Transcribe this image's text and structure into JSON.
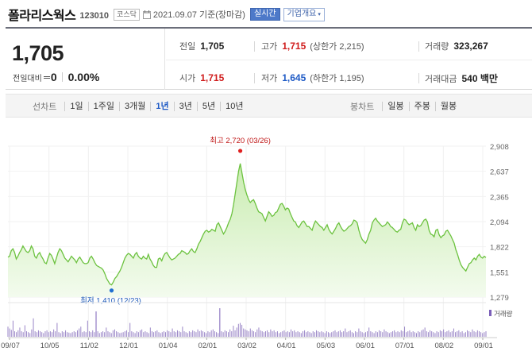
{
  "header": {
    "stock_name": "폴라리스웍스",
    "stock_code": "123010",
    "market": "코스닥",
    "date_text": "2021.09.07 기준(장마감)",
    "realtime_label": "실시간",
    "company_label": "기업개요",
    "company_caret": "▾"
  },
  "summary": {
    "price": "1,705",
    "change_label": "전일대비",
    "change_value": "0",
    "change_pct": "0.00%",
    "prev_close_label": "전일",
    "prev_close": "1,705",
    "high_label": "고가",
    "high": "1,715",
    "upper_limit": "(상한가 2,215)",
    "volume_label": "거래량",
    "volume": "323,267",
    "open_label": "시가",
    "open": "1,715",
    "low_label": "저가",
    "low": "1,645",
    "lower_limit": "(하한가 1,195)",
    "amount_label": "거래대금",
    "amount": "540 백만"
  },
  "line_tabs": {
    "label": "선차트",
    "items": [
      "1일",
      "1주일",
      "3개월",
      "1년",
      "3년",
      "5년",
      "10년"
    ],
    "active": "1년"
  },
  "candle_tabs": {
    "label": "봉차트",
    "items": [
      "일봉",
      "주봉",
      "월봉"
    ]
  },
  "colors": {
    "line": "#6cc23f",
    "area_top": "#c9ecb0",
    "area_bottom": "#f3fbee",
    "max_marker": "#e02020",
    "min_marker": "#1f6fd1",
    "volume_bar": "#9a86c7",
    "volume_peak": "#7b5fb8"
  },
  "chart_data": {
    "type": "area",
    "y_ticks": [
      "2,908",
      "2,637",
      "2,365",
      "2,094",
      "1,822",
      "1,551",
      "1,279"
    ],
    "ylim": [
      1279,
      2908
    ],
    "x_ticks": [
      "09/07",
      "10/05",
      "11/02",
      "12/01",
      "01/04",
      "02/01",
      "03/02",
      "04/01",
      "05/03",
      "06/01",
      "07/01",
      "08/02",
      "09/01"
    ],
    "max_label": "최고 2,720 (03/26)",
    "min_label": "최저 1,410 (12/23)",
    "volume_legend": "거래량",
    "series": [
      {
        "values": [
          1710,
          1720,
          1780,
          1800,
          1760,
          1690,
          1720,
          1760,
          1790,
          1830,
          1800,
          1770,
          1760,
          1780,
          1830,
          1800,
          1720,
          1700,
          1740,
          1760,
          1720,
          1690,
          1650,
          1640,
          1700,
          1750,
          1730,
          1690,
          1640,
          1700,
          1760,
          1800,
          1780,
          1740,
          1700,
          1680,
          1660,
          1690,
          1720,
          1700,
          1680,
          1650,
          1690,
          1710,
          1680,
          1650,
          1640,
          1640,
          1650,
          1700,
          1720,
          1690,
          1650,
          1620,
          1610,
          1600,
          1590,
          1570,
          1530,
          1480,
          1450,
          1420,
          1410,
          1440,
          1480,
          1500,
          1530,
          1560,
          1600,
          1650,
          1700,
          1730,
          1750,
          1740,
          1720,
          1700,
          1740,
          1760,
          1720,
          1700,
          1690,
          1720,
          1700,
          1690,
          1740,
          1690,
          1660,
          1620,
          1600,
          1600,
          1690,
          1700,
          1670,
          1720,
          1750,
          1760,
          1730,
          1700,
          1680,
          1690,
          1700,
          1720,
          1740,
          1750,
          1780,
          1770,
          1760,
          1740,
          1750,
          1780,
          1800,
          1770,
          1760,
          1800,
          1850,
          1880,
          1920,
          1960,
          1990,
          2000,
          1980,
          1990,
          2010,
          2000,
          1990,
          2060,
          2080,
          2040,
          2000,
          1960,
          1990,
          2030,
          2080,
          2120,
          2180,
          2280,
          2400,
          2520,
          2640,
          2720,
          2620,
          2520,
          2440,
          2380,
          2330,
          2300,
          2320,
          2330,
          2290,
          2240,
          2200,
          2190,
          2180,
          2140,
          2100,
          2150,
          2200,
          2180,
          2150,
          2160,
          2190,
          2200,
          2240,
          2280,
          2290,
          2260,
          2220,
          2240,
          2230,
          2180,
          2140,
          2100,
          2090,
          2050,
          2030,
          2060,
          2090,
          2100,
          2070,
          2040,
          2040,
          2020,
          2000,
          2060,
          2100,
          2080,
          2060,
          2040,
          2030,
          2000,
          2030,
          2060,
          2010,
          1980,
          1960,
          1990,
          2020,
          2060,
          2080,
          2040,
          2010,
          1990,
          2000,
          2020,
          2040,
          2050,
          2070,
          2110,
          2100,
          2080,
          2000,
          1940,
          1900,
          1880,
          1860,
          1900,
          1960,
          2000,
          2080,
          2110,
          2130,
          2100,
          2080,
          2060,
          2040,
          2050,
          2060,
          2090,
          2070,
          2040,
          2030,
          2010,
          1990,
          1980,
          2000,
          2010,
          2080,
          2120,
          2110,
          2080,
          2060,
          2070,
          2080,
          2030,
          2000,
          2060,
          2040,
          2050,
          2080,
          2110,
          2120,
          2090,
          2000,
          1960,
          1950,
          1930,
          2000,
          2010,
          1950,
          1920,
          1940,
          1950,
          1990,
          2000,
          1970,
          1940,
          1900,
          1860,
          1790,
          1740,
          1680,
          1630,
          1600,
          1580,
          1560,
          1600,
          1640,
          1650,
          1680,
          1700,
          1680,
          1720,
          1740,
          1710,
          1700,
          1720,
          1705
        ]
      }
    ],
    "volume": [
      22,
      18,
      15,
      35,
      12,
      10,
      14,
      20,
      12,
      10,
      25,
      12,
      10,
      8,
      16,
      40,
      12,
      10,
      14,
      12,
      10,
      8,
      12,
      14,
      10,
      12,
      10,
      16,
      12,
      30,
      10,
      8,
      12,
      10,
      14,
      10,
      9,
      8,
      10,
      12,
      10,
      14,
      18,
      22,
      10,
      12,
      10,
      35,
      12,
      10,
      14,
      10,
      55,
      12,
      8,
      10,
      12,
      10,
      20,
      12,
      10,
      8,
      14,
      16,
      12,
      10,
      8,
      9,
      10,
      12,
      14,
      10,
      30,
      12,
      10,
      8,
      12,
      10,
      14,
      16,
      10,
      12,
      10,
      8,
      20,
      12,
      10,
      12,
      14,
      10,
      8,
      10,
      12,
      10,
      14,
      12,
      10,
      18,
      12,
      10,
      14,
      12,
      10,
      22,
      12,
      10,
      8,
      12,
      10,
      14,
      12,
      10,
      16,
      12,
      14,
      12,
      10,
      8,
      12,
      10,
      14,
      16,
      12,
      10,
      8,
      62,
      12,
      10,
      14,
      12,
      10,
      16,
      12,
      24,
      14,
      20,
      28,
      30,
      26,
      18,
      16,
      14,
      12,
      18,
      14,
      12,
      10,
      16,
      20,
      14,
      12,
      10,
      12,
      14,
      10,
      16,
      12,
      14,
      10,
      12,
      8,
      10,
      12,
      14,
      10,
      12,
      10,
      16,
      12,
      14,
      10,
      12,
      10,
      8,
      12,
      14,
      10,
      12,
      10,
      8,
      12,
      10,
      14,
      12,
      10,
      12,
      10,
      8,
      12,
      10,
      8,
      10,
      12,
      14,
      10,
      12,
      14,
      10,
      12,
      18,
      10,
      12,
      14,
      10,
      8,
      12,
      10,
      18,
      12,
      10,
      8,
      10,
      12,
      20,
      12,
      10,
      8,
      12,
      10,
      14,
      12,
      10,
      16,
      12,
      10,
      8,
      10,
      12,
      14,
      10,
      12,
      10,
      14,
      12,
      22,
      10,
      12,
      14,
      10,
      12,
      10,
      8,
      12,
      10,
      14,
      16,
      20,
      12,
      10,
      14,
      12,
      10,
      8,
      12,
      10,
      14,
      12,
      16,
      10,
      12,
      14,
      10,
      12,
      18,
      10,
      12,
      14,
      10,
      12,
      8,
      10,
      14,
      12,
      10,
      16,
      12,
      10,
      14,
      12,
      10,
      8,
      10,
      12
    ]
  }
}
